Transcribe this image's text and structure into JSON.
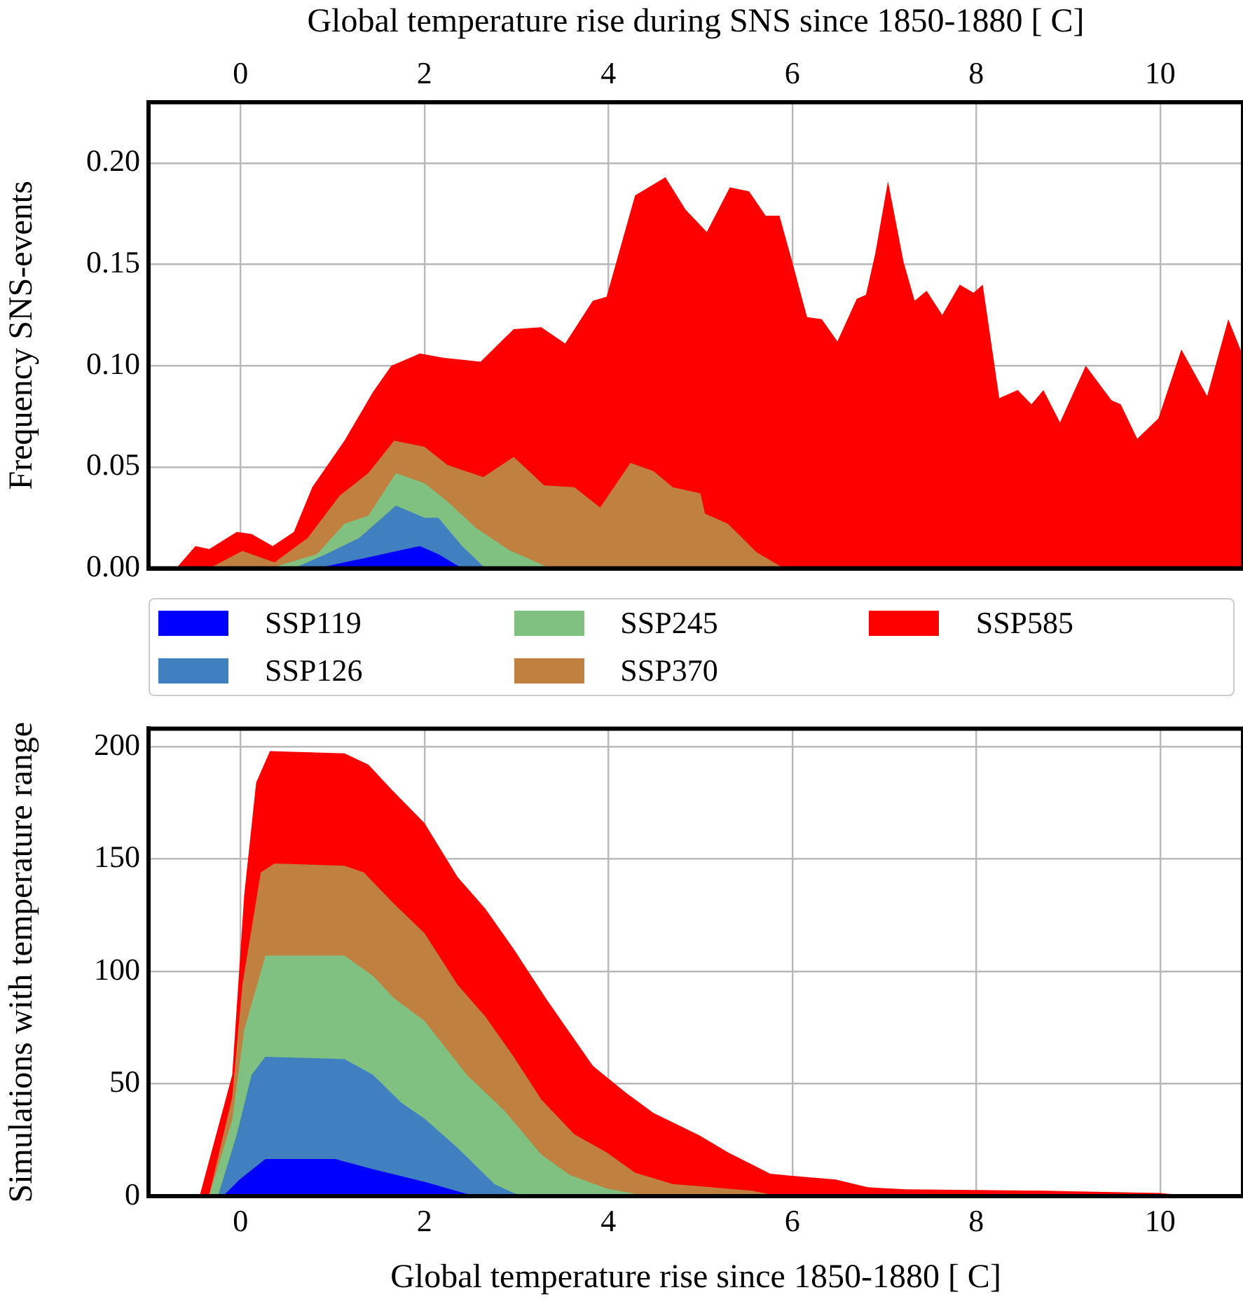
{
  "chart_data": [
    {
      "type": "area",
      "xlabel": "Global temperature rise during SNS since 1850-1880 [ C]",
      "ylabel": "Frequency SNS-events",
      "xlim": [
        -1,
        10.9
      ],
      "xticks": [
        0,
        2,
        4,
        6,
        8,
        10
      ],
      "ylim": [
        0,
        0.23
      ],
      "yticks": [
        {
          "value": 0,
          "label": "0.00"
        },
        {
          "value": 0.05,
          "label": "0.05"
        },
        {
          "value": 0.1,
          "label": "0.10"
        },
        {
          "value": 0.15,
          "label": "0.15"
        },
        {
          "value": 0.2,
          "label": "0.20"
        }
      ],
      "grid": true,
      "legend": "bottom",
      "series": [
        {
          "name": "SSP119",
          "color": "#0000ff",
          "x": [
            0.83,
            1.34,
            1.64,
            1.95,
            2.15,
            2.41
          ],
          "values": [
            0,
            0.005,
            0.008,
            0.011,
            0.007,
            0
          ]
        },
        {
          "name": "SSP126",
          "color": "#4080c0",
          "x": [
            0.58,
            0.93,
            1.29,
            1.69,
            2.0,
            2.15,
            2.41,
            2.66
          ],
          "values": [
            0,
            0.007,
            0.015,
            0.031,
            0.025,
            0.025,
            0.011,
            0
          ]
        },
        {
          "name": "SSP245",
          "color": "#80c080",
          "x": [
            0.32,
            0.83,
            1.13,
            1.39,
            1.69,
            2.0,
            2.25,
            2.56,
            2.92,
            3.37
          ],
          "values": [
            0,
            0.007,
            0.022,
            0.026,
            0.047,
            0.042,
            0.033,
            0.02,
            0.009,
            0
          ]
        },
        {
          "name": "SSP370",
          "color": "#c08040",
          "x": [
            -0.34,
            0.02,
            0.37,
            0.73,
            1.08,
            1.39,
            1.67,
            2.0,
            2.25,
            2.64,
            2.97,
            3.3,
            3.63,
            3.91,
            4.24,
            4.49,
            4.7,
            5.0,
            5.05,
            5.3,
            5.61,
            5.91
          ],
          "values": [
            0,
            0.0086,
            0.003,
            0.015,
            0.036,
            0.047,
            0.063,
            0.06,
            0.051,
            0.045,
            0.055,
            0.041,
            0.04,
            0.03,
            0.052,
            0.048,
            0.04,
            0.037,
            0.027,
            0.022,
            0.008,
            0
          ]
        },
        {
          "name": "SSP585",
          "color": "#ff0000",
          "x": [
            -0.7,
            -0.49,
            -0.34,
            -0.04,
            0.12,
            0.35,
            0.58,
            0.78,
            1.13,
            1.44,
            1.64,
            1.95,
            2.2,
            2.61,
            2.97,
            3.27,
            3.53,
            3.83,
            3.98,
            4.29,
            4.62,
            4.84,
            5.07,
            5.32,
            5.53,
            5.71,
            5.86,
            6.0,
            6.16,
            6.32,
            6.49,
            6.7,
            6.8,
            6.9,
            7.04,
            7.21,
            7.33,
            7.46,
            7.63,
            7.82,
            7.97,
            8.07,
            8.25,
            8.45,
            8.6,
            8.73,
            8.91,
            9.19,
            9.47,
            9.57,
            9.75,
            9.98,
            10.23,
            10.51,
            10.74,
            10.89
          ],
          "values": [
            0,
            0.011,
            0.0095,
            0.018,
            0.017,
            0.011,
            0.018,
            0.04,
            0.063,
            0.087,
            0.1,
            0.106,
            0.104,
            0.102,
            0.118,
            0.119,
            0.111,
            0.132,
            0.134,
            0.184,
            0.193,
            0.177,
            0.166,
            0.188,
            0.186,
            0.174,
            0.174,
            0.151,
            0.124,
            0.123,
            0.112,
            0.133,
            0.135,
            0.155,
            0.191,
            0.151,
            0.132,
            0.137,
            0.125,
            0.14,
            0.136,
            0.14,
            0.084,
            0.088,
            0.081,
            0.088,
            0.072,
            0.1,
            0.083,
            0.081,
            0.064,
            0.074,
            0.108,
            0.085,
            0.123,
            0.106
          ]
        }
      ]
    },
    {
      "type": "area",
      "xlabel": "Global temperature rise since 1850-1880 [ C]",
      "ylabel": "Simulations with temperature range",
      "xlim": [
        -1,
        10.9
      ],
      "xticks": [
        0,
        2,
        4,
        6,
        8,
        10
      ],
      "ylim": [
        0,
        208
      ],
      "yticks": [
        0,
        50,
        100,
        150,
        200
      ],
      "grid": true,
      "series": [
        {
          "color": "#0000ff",
          "x": [
            -0.19,
            -0.01,
            0.27,
            1.03,
            1.44,
            2.0,
            2.46,
            2.76
          ],
          "values": [
            0,
            7.4,
            16.5,
            16.5,
            12,
            6.4,
            1,
            0
          ]
        },
        {
          "color": "#4080c0",
          "x": [
            -0.24,
            -0.04,
            0.12,
            0.27,
            1.13,
            1.44,
            1.75,
            2.0,
            2.36,
            2.76,
            2.97,
            3.12
          ],
          "values": [
            0.8,
            27.5,
            54,
            62,
            61,
            54,
            41.5,
            34.5,
            21.5,
            5.4,
            1.4,
            0
          ]
        },
        {
          "color": "#80c080",
          "x": [
            -0.34,
            -0.09,
            0.04,
            0.27,
            1.13,
            1.44,
            1.67,
            2.0,
            2.46,
            2.87,
            3.27,
            3.58,
            3.98,
            4.29,
            4.49
          ],
          "values": [
            0.4,
            34,
            74,
            107,
            107,
            98,
            88,
            78,
            54,
            38,
            18.5,
            9.4,
            3.4,
            1,
            0
          ]
        },
        {
          "color": "#c08040",
          "x": [
            -0.34,
            -0.09,
            0.02,
            0.22,
            0.37,
            1.13,
            1.34,
            1.67,
            2.0,
            2.36,
            2.66,
            2.97,
            3.27,
            3.63,
            3.98,
            4.29,
            4.7,
            5.56,
            5.76,
            5.95
          ],
          "values": [
            0.8,
            44,
            94,
            144,
            148,
            147,
            144,
            130,
            117,
            94,
            80,
            62,
            43,
            27.5,
            19.5,
            10.4,
            5.4,
            2.4,
            0.8,
            0
          ]
        },
        {
          "color": "#ff0000",
          "x": [
            -0.44,
            -0.09,
            0.04,
            0.17,
            0.32,
            1.13,
            1.39,
            1.64,
            2.0,
            2.36,
            2.66,
            2.97,
            3.32,
            3.83,
            4.19,
            4.49,
            4.69,
            4.99,
            5.3,
            5.76,
            6.0,
            6.47,
            6.82,
            7.23,
            8.76,
            9.99,
            10.28,
            10.89
          ],
          "values": [
            0.8,
            54,
            134,
            184,
            198,
            197,
            192,
            181,
            166,
            142,
            128,
            110,
            88,
            58,
            46,
            37,
            33,
            27,
            19.5,
            10,
            9,
            7.4,
            4,
            3,
            2.4,
            1.4,
            0.4,
            0
          ]
        }
      ]
    }
  ]
}
